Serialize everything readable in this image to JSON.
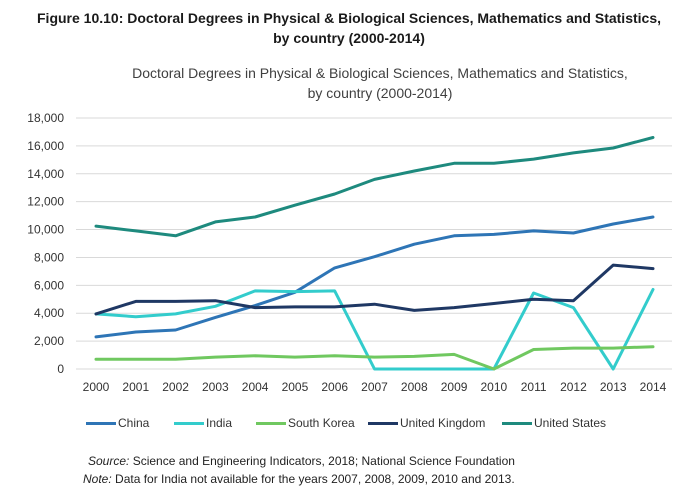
{
  "figure_title_line1": "Figure 10.10: Doctoral Degrees in Physical & Biological Sciences, Mathematics and Statistics,",
  "figure_title_line2": "by country (2000-2014)",
  "source_label": "Source:",
  "source_text": " Science and Engineering Indicators, 2018; National Science Foundation",
  "note_label": "Note:",
  "note_text": " Data for India not available for the years 2007, 2008, 2009, 2010 and 2013.",
  "chart_data": {
    "type": "line",
    "title_line1": "Doctoral Degrees in Physical & Biological Sciences, Mathematics and Statistics,",
    "title_line2": "by country (2000-2014)",
    "xlabel": "",
    "ylabel": "",
    "ylim": [
      0,
      18000
    ],
    "yticks": [
      0,
      2000,
      4000,
      6000,
      8000,
      10000,
      12000,
      14000,
      16000,
      18000
    ],
    "ytick_labels": [
      "0",
      "2,000",
      "4,000",
      "6,000",
      "8,000",
      "10,000",
      "12,000",
      "14,000",
      "16,000",
      "18,000"
    ],
    "gridlines": true,
    "legend_position": "bottom",
    "categories": [
      "2000",
      "2001",
      "2002",
      "2003",
      "2004",
      "2005",
      "2006",
      "2007",
      "2008",
      "2009",
      "2010",
      "2011",
      "2012",
      "2013",
      "2014"
    ],
    "series": [
      {
        "name": "China",
        "color": "#2e75b6",
        "values": [
          2300,
          2650,
          2800,
          3700,
          4550,
          5500,
          7250,
          8050,
          8950,
          9550,
          9650,
          9900,
          9750,
          10400,
          10900
        ]
      },
      {
        "name": "India",
        "color": "#33cccc",
        "values": [
          3950,
          3750,
          3950,
          4500,
          5600,
          5550,
          5600,
          0,
          0,
          0,
          0,
          5450,
          4400,
          0,
          5700
        ]
      },
      {
        "name": "South Korea",
        "color": "#70c860",
        "values": [
          700,
          700,
          700,
          850,
          950,
          850,
          950,
          850,
          900,
          1050,
          0,
          1400,
          1500,
          1500,
          1600
        ]
      },
      {
        "name": "United Kingdom",
        "color": "#1f3864",
        "values": [
          3950,
          4850,
          4850,
          4900,
          4400,
          4450,
          4450,
          4650,
          4200,
          4400,
          4700,
          5000,
          4900,
          7450,
          7200
        ]
      },
      {
        "name": "United States",
        "color": "#1e8a7e",
        "values": [
          10250,
          9900,
          9550,
          10550,
          10900,
          11750,
          12550,
          13600,
          14200,
          14750,
          14750,
          15050,
          15500,
          15850,
          16600
        ]
      }
    ]
  }
}
